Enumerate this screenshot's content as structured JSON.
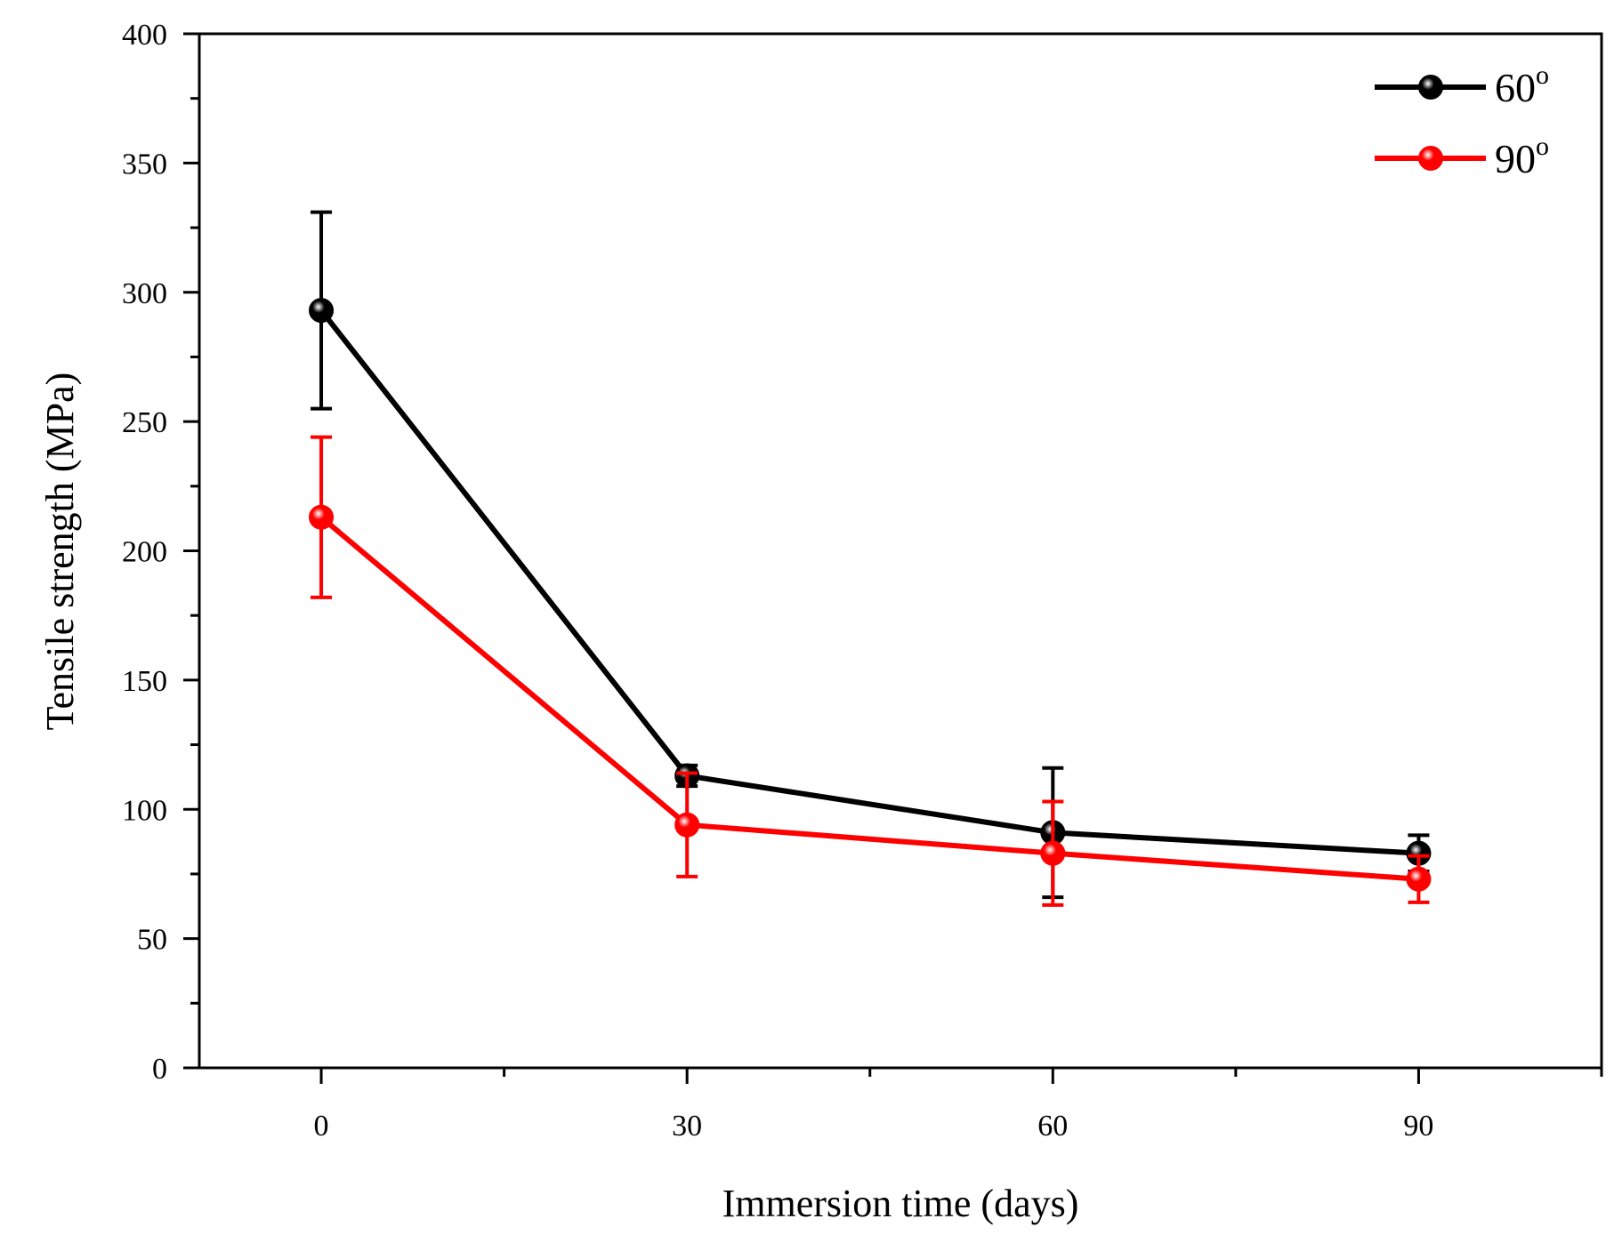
{
  "chart_data": {
    "type": "line",
    "title": "",
    "xlabel": "Immersion time (days)",
    "ylabel": "Tensile strength (MPa)",
    "x": [
      0,
      30,
      60,
      90
    ],
    "xlim": [
      -10,
      105
    ],
    "ylim": [
      0,
      400
    ],
    "xticks": [
      0,
      30,
      60,
      90
    ],
    "yticks": [
      0,
      50,
      100,
      150,
      200,
      250,
      300,
      350,
      400
    ],
    "x_tick_labels": [
      "0",
      "30",
      "60",
      "90"
    ],
    "y_tick_labels": [
      "0",
      "50",
      "100",
      "150",
      "200",
      "250",
      "300",
      "350",
      "400"
    ],
    "grid": false,
    "legend_position": "top-right",
    "series": [
      {
        "name": "60",
        "superscript": "o",
        "color": "#000000",
        "values": [
          293,
          113,
          91,
          83
        ],
        "error": [
          38,
          4,
          25,
          7
        ]
      },
      {
        "name": "90",
        "superscript": "o",
        "color": "#ff0000",
        "values": [
          213,
          94,
          83,
          73
        ],
        "error": [
          31,
          20,
          20,
          9
        ]
      }
    ]
  }
}
